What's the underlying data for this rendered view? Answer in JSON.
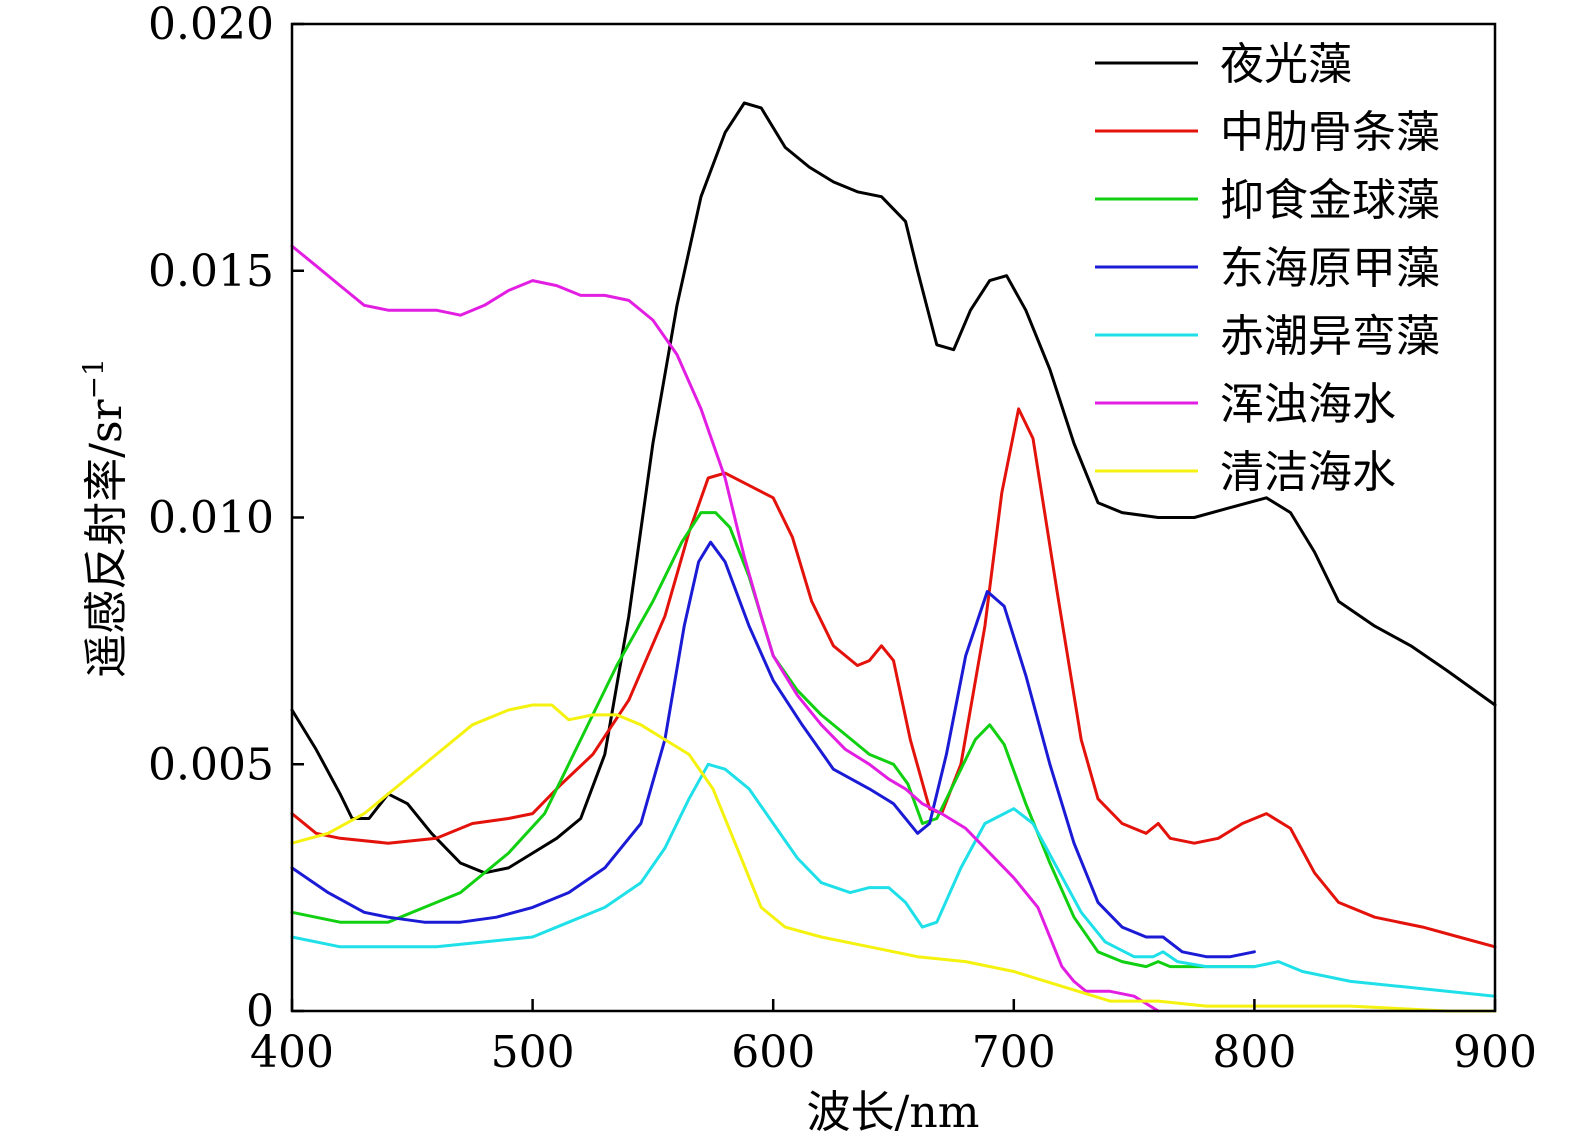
{
  "chart_data": {
    "type": "line",
    "title": "",
    "xlabel": "波长/nm",
    "ylabel": "遥感反射率/sr",
    "ylabel_sup": "−1",
    "xlim": [
      400,
      900
    ],
    "ylim": [
      0,
      0.02
    ],
    "xticks": [
      400,
      500,
      600,
      700,
      800,
      900
    ],
    "xtick_labels": [
      "400",
      "500",
      "600",
      "700",
      "800",
      "900"
    ],
    "yticks": [
      0,
      0.005,
      0.01,
      0.015,
      0.02
    ],
    "ytick_labels": [
      "0",
      "0.005",
      "0.010",
      "0.015",
      "0.020"
    ],
    "grid": false,
    "legend_position": "top-right",
    "series": [
      {
        "name": "夜光藻",
        "color": "#000000",
        "points": [
          [
            400,
            0.0061
          ],
          [
            410,
            0.0053
          ],
          [
            420,
            0.0044
          ],
          [
            425,
            0.0039
          ],
          [
            432,
            0.0039
          ],
          [
            440,
            0.0044
          ],
          [
            448,
            0.0042
          ],
          [
            458,
            0.0036
          ],
          [
            470,
            0.003
          ],
          [
            480,
            0.0028
          ],
          [
            490,
            0.0029
          ],
          [
            500,
            0.0032
          ],
          [
            510,
            0.0035
          ],
          [
            520,
            0.0039
          ],
          [
            530,
            0.0052
          ],
          [
            540,
            0.008
          ],
          [
            550,
            0.0115
          ],
          [
            560,
            0.0143
          ],
          [
            570,
            0.0165
          ],
          [
            580,
            0.0178
          ],
          [
            588,
            0.0184
          ],
          [
            595,
            0.0183
          ],
          [
            605,
            0.0175
          ],
          [
            615,
            0.0171
          ],
          [
            625,
            0.0168
          ],
          [
            635,
            0.0166
          ],
          [
            645,
            0.0165
          ],
          [
            655,
            0.016
          ],
          [
            660,
            0.015
          ],
          [
            668,
            0.0135
          ],
          [
            675,
            0.0134
          ],
          [
            682,
            0.0142
          ],
          [
            690,
            0.0148
          ],
          [
            697,
            0.0149
          ],
          [
            705,
            0.0142
          ],
          [
            715,
            0.013
          ],
          [
            725,
            0.0115
          ],
          [
            735,
            0.0103
          ],
          [
            745,
            0.0101
          ],
          [
            760,
            0.01
          ],
          [
            775,
            0.01
          ],
          [
            790,
            0.0102
          ],
          [
            805,
            0.0104
          ],
          [
            815,
            0.0101
          ],
          [
            825,
            0.0093
          ],
          [
            835,
            0.0083
          ],
          [
            850,
            0.0078
          ],
          [
            865,
            0.0074
          ],
          [
            880,
            0.0069
          ],
          [
            900,
            0.0062
          ]
        ]
      },
      {
        "name": "中肋骨条藻",
        "color": "#e3120b",
        "points": [
          [
            400,
            0.004
          ],
          [
            410,
            0.0036
          ],
          [
            420,
            0.0035
          ],
          [
            440,
            0.0034
          ],
          [
            460,
            0.0035
          ],
          [
            475,
            0.0038
          ],
          [
            490,
            0.0039
          ],
          [
            500,
            0.004
          ],
          [
            512,
            0.0046
          ],
          [
            525,
            0.0052
          ],
          [
            540,
            0.0063
          ],
          [
            555,
            0.008
          ],
          [
            565,
            0.0097
          ],
          [
            573,
            0.0108
          ],
          [
            580,
            0.0109
          ],
          [
            592,
            0.0106
          ],
          [
            600,
            0.0104
          ],
          [
            608,
            0.0096
          ],
          [
            616,
            0.0083
          ],
          [
            625,
            0.0074
          ],
          [
            635,
            0.007
          ],
          [
            640,
            0.0071
          ],
          [
            645,
            0.0074
          ],
          [
            650,
            0.0071
          ],
          [
            657,
            0.0055
          ],
          [
            665,
            0.0041
          ],
          [
            670,
            0.004
          ],
          [
            678,
            0.005
          ],
          [
            688,
            0.0078
          ],
          [
            695,
            0.0105
          ],
          [
            702,
            0.0122
          ],
          [
            708,
            0.0116
          ],
          [
            718,
            0.0085
          ],
          [
            728,
            0.0055
          ],
          [
            735,
            0.0043
          ],
          [
            745,
            0.0038
          ],
          [
            755,
            0.0036
          ],
          [
            760,
            0.0038
          ],
          [
            765,
            0.0035
          ],
          [
            775,
            0.0034
          ],
          [
            785,
            0.0035
          ],
          [
            795,
            0.0038
          ],
          [
            805,
            0.004
          ],
          [
            815,
            0.0037
          ],
          [
            825,
            0.0028
          ],
          [
            835,
            0.0022
          ],
          [
            850,
            0.0019
          ],
          [
            870,
            0.0017
          ],
          [
            885,
            0.0015
          ],
          [
            900,
            0.0013
          ]
        ]
      },
      {
        "name": "抑食金球藻",
        "color": "#11d011",
        "points": [
          [
            400,
            0.002
          ],
          [
            420,
            0.0018
          ],
          [
            440,
            0.0018
          ],
          [
            455,
            0.0021
          ],
          [
            470,
            0.0024
          ],
          [
            490,
            0.0032
          ],
          [
            505,
            0.004
          ],
          [
            520,
            0.0055
          ],
          [
            535,
            0.007
          ],
          [
            550,
            0.0083
          ],
          [
            562,
            0.0095
          ],
          [
            570,
            0.0101
          ],
          [
            576,
            0.0101
          ],
          [
            582,
            0.0098
          ],
          [
            590,
            0.0088
          ],
          [
            600,
            0.0072
          ],
          [
            610,
            0.0065
          ],
          [
            620,
            0.006
          ],
          [
            630,
            0.0056
          ],
          [
            640,
            0.0052
          ],
          [
            650,
            0.005
          ],
          [
            656,
            0.0046
          ],
          [
            662,
            0.0038
          ],
          [
            668,
            0.0039
          ],
          [
            676,
            0.0047
          ],
          [
            684,
            0.0055
          ],
          [
            690,
            0.0058
          ],
          [
            696,
            0.0054
          ],
          [
            705,
            0.0042
          ],
          [
            715,
            0.003
          ],
          [
            725,
            0.0019
          ],
          [
            735,
            0.0012
          ],
          [
            745,
            0.001
          ],
          [
            755,
            0.0009
          ],
          [
            760,
            0.001
          ],
          [
            765,
            0.0009
          ],
          [
            775,
            0.0009
          ],
          [
            790,
            0.0009
          ],
          [
            800,
            0.0009
          ]
        ]
      },
      {
        "name": "东海原甲藻",
        "color": "#1b1bd6",
        "points": [
          [
            400,
            0.0029
          ],
          [
            415,
            0.0024
          ],
          [
            430,
            0.002
          ],
          [
            440,
            0.0019
          ],
          [
            455,
            0.0018
          ],
          [
            470,
            0.0018
          ],
          [
            485,
            0.0019
          ],
          [
            500,
            0.0021
          ],
          [
            515,
            0.0024
          ],
          [
            530,
            0.0029
          ],
          [
            545,
            0.0038
          ],
          [
            555,
            0.0055
          ],
          [
            563,
            0.0078
          ],
          [
            569,
            0.0091
          ],
          [
            574,
            0.0095
          ],
          [
            580,
            0.0091
          ],
          [
            590,
            0.0078
          ],
          [
            600,
            0.0067
          ],
          [
            612,
            0.0058
          ],
          [
            625,
            0.0049
          ],
          [
            640,
            0.0045
          ],
          [
            650,
            0.0042
          ],
          [
            660,
            0.0036
          ],
          [
            665,
            0.0038
          ],
          [
            672,
            0.0052
          ],
          [
            680,
            0.0072
          ],
          [
            689,
            0.0085
          ],
          [
            696,
            0.0082
          ],
          [
            705,
            0.0068
          ],
          [
            715,
            0.005
          ],
          [
            725,
            0.0034
          ],
          [
            735,
            0.0022
          ],
          [
            745,
            0.0017
          ],
          [
            755,
            0.0015
          ],
          [
            762,
            0.0015
          ],
          [
            770,
            0.0012
          ],
          [
            780,
            0.0011
          ],
          [
            790,
            0.0011
          ],
          [
            800,
            0.0012
          ]
        ]
      },
      {
        "name": "赤潮异弯藻",
        "color": "#1fe0e8",
        "points": [
          [
            400,
            0.0015
          ],
          [
            420,
            0.0013
          ],
          [
            440,
            0.0013
          ],
          [
            460,
            0.0013
          ],
          [
            480,
            0.0014
          ],
          [
            500,
            0.0015
          ],
          [
            515,
            0.0018
          ],
          [
            530,
            0.0021
          ],
          [
            545,
            0.0026
          ],
          [
            555,
            0.0033
          ],
          [
            565,
            0.0043
          ],
          [
            573,
            0.005
          ],
          [
            580,
            0.0049
          ],
          [
            590,
            0.0045
          ],
          [
            600,
            0.0038
          ],
          [
            610,
            0.0031
          ],
          [
            620,
            0.0026
          ],
          [
            632,
            0.0024
          ],
          [
            640,
            0.0025
          ],
          [
            648,
            0.0025
          ],
          [
            655,
            0.0022
          ],
          [
            662,
            0.0017
          ],
          [
            668,
            0.0018
          ],
          [
            678,
            0.0029
          ],
          [
            688,
            0.0038
          ],
          [
            700,
            0.0041
          ],
          [
            708,
            0.0038
          ],
          [
            718,
            0.0029
          ],
          [
            728,
            0.002
          ],
          [
            738,
            0.0014
          ],
          [
            750,
            0.0011
          ],
          [
            758,
            0.0011
          ],
          [
            762,
            0.0012
          ],
          [
            768,
            0.001
          ],
          [
            780,
            0.0009
          ],
          [
            800,
            0.0009
          ],
          [
            810,
            0.001
          ],
          [
            820,
            0.0008
          ],
          [
            840,
            0.0006
          ],
          [
            860,
            0.0005
          ],
          [
            880,
            0.0004
          ],
          [
            900,
            0.0003
          ]
        ]
      },
      {
        "name": "浑浊海水",
        "color": "#e31ee3",
        "points": [
          [
            400,
            0.0155
          ],
          [
            410,
            0.0151
          ],
          [
            420,
            0.0147
          ],
          [
            430,
            0.0143
          ],
          [
            440,
            0.0142
          ],
          [
            450,
            0.0142
          ],
          [
            460,
            0.0142
          ],
          [
            470,
            0.0141
          ],
          [
            480,
            0.0143
          ],
          [
            490,
            0.0146
          ],
          [
            500,
            0.0148
          ],
          [
            510,
            0.0147
          ],
          [
            520,
            0.0145
          ],
          [
            530,
            0.0145
          ],
          [
            540,
            0.0144
          ],
          [
            550,
            0.014
          ],
          [
            560,
            0.0133
          ],
          [
            570,
            0.0122
          ],
          [
            580,
            0.0108
          ],
          [
            588,
            0.0092
          ],
          [
            595,
            0.008
          ],
          [
            600,
            0.0072
          ],
          [
            610,
            0.0064
          ],
          [
            620,
            0.0058
          ],
          [
            630,
            0.0053
          ],
          [
            640,
            0.005
          ],
          [
            648,
            0.0047
          ],
          [
            655,
            0.0045
          ],
          [
            662,
            0.0042
          ],
          [
            670,
            0.004
          ],
          [
            680,
            0.0037
          ],
          [
            690,
            0.0032
          ],
          [
            700,
            0.0027
          ],
          [
            710,
            0.0021
          ],
          [
            715,
            0.0015
          ],
          [
            720,
            0.0009
          ],
          [
            725,
            0.0006
          ],
          [
            730,
            0.0004
          ],
          [
            740,
            0.0004
          ],
          [
            750,
            0.0003
          ],
          [
            760,
            0.0
          ]
        ]
      },
      {
        "name": "清洁海水",
        "color": "#f4f20e",
        "points": [
          [
            400,
            0.0034
          ],
          [
            415,
            0.0036
          ],
          [
            430,
            0.004
          ],
          [
            445,
            0.0046
          ],
          [
            460,
            0.0052
          ],
          [
            475,
            0.0058
          ],
          [
            490,
            0.0061
          ],
          [
            500,
            0.0062
          ],
          [
            508,
            0.0062
          ],
          [
            515,
            0.0059
          ],
          [
            525,
            0.006
          ],
          [
            535,
            0.006
          ],
          [
            545,
            0.0058
          ],
          [
            555,
            0.0055
          ],
          [
            565,
            0.0052
          ],
          [
            575,
            0.0045
          ],
          [
            585,
            0.0033
          ],
          [
            595,
            0.0021
          ],
          [
            605,
            0.0017
          ],
          [
            620,
            0.0015
          ],
          [
            640,
            0.0013
          ],
          [
            660,
            0.0011
          ],
          [
            680,
            0.001
          ],
          [
            700,
            0.0008
          ],
          [
            720,
            0.0005
          ],
          [
            740,
            0.0002
          ],
          [
            760,
            0.0002
          ],
          [
            780,
            0.0001
          ],
          [
            800,
            0.0001
          ],
          [
            840,
            0.0001
          ],
          [
            880,
            0.0
          ],
          [
            900,
            0.0
          ]
        ]
      }
    ]
  }
}
